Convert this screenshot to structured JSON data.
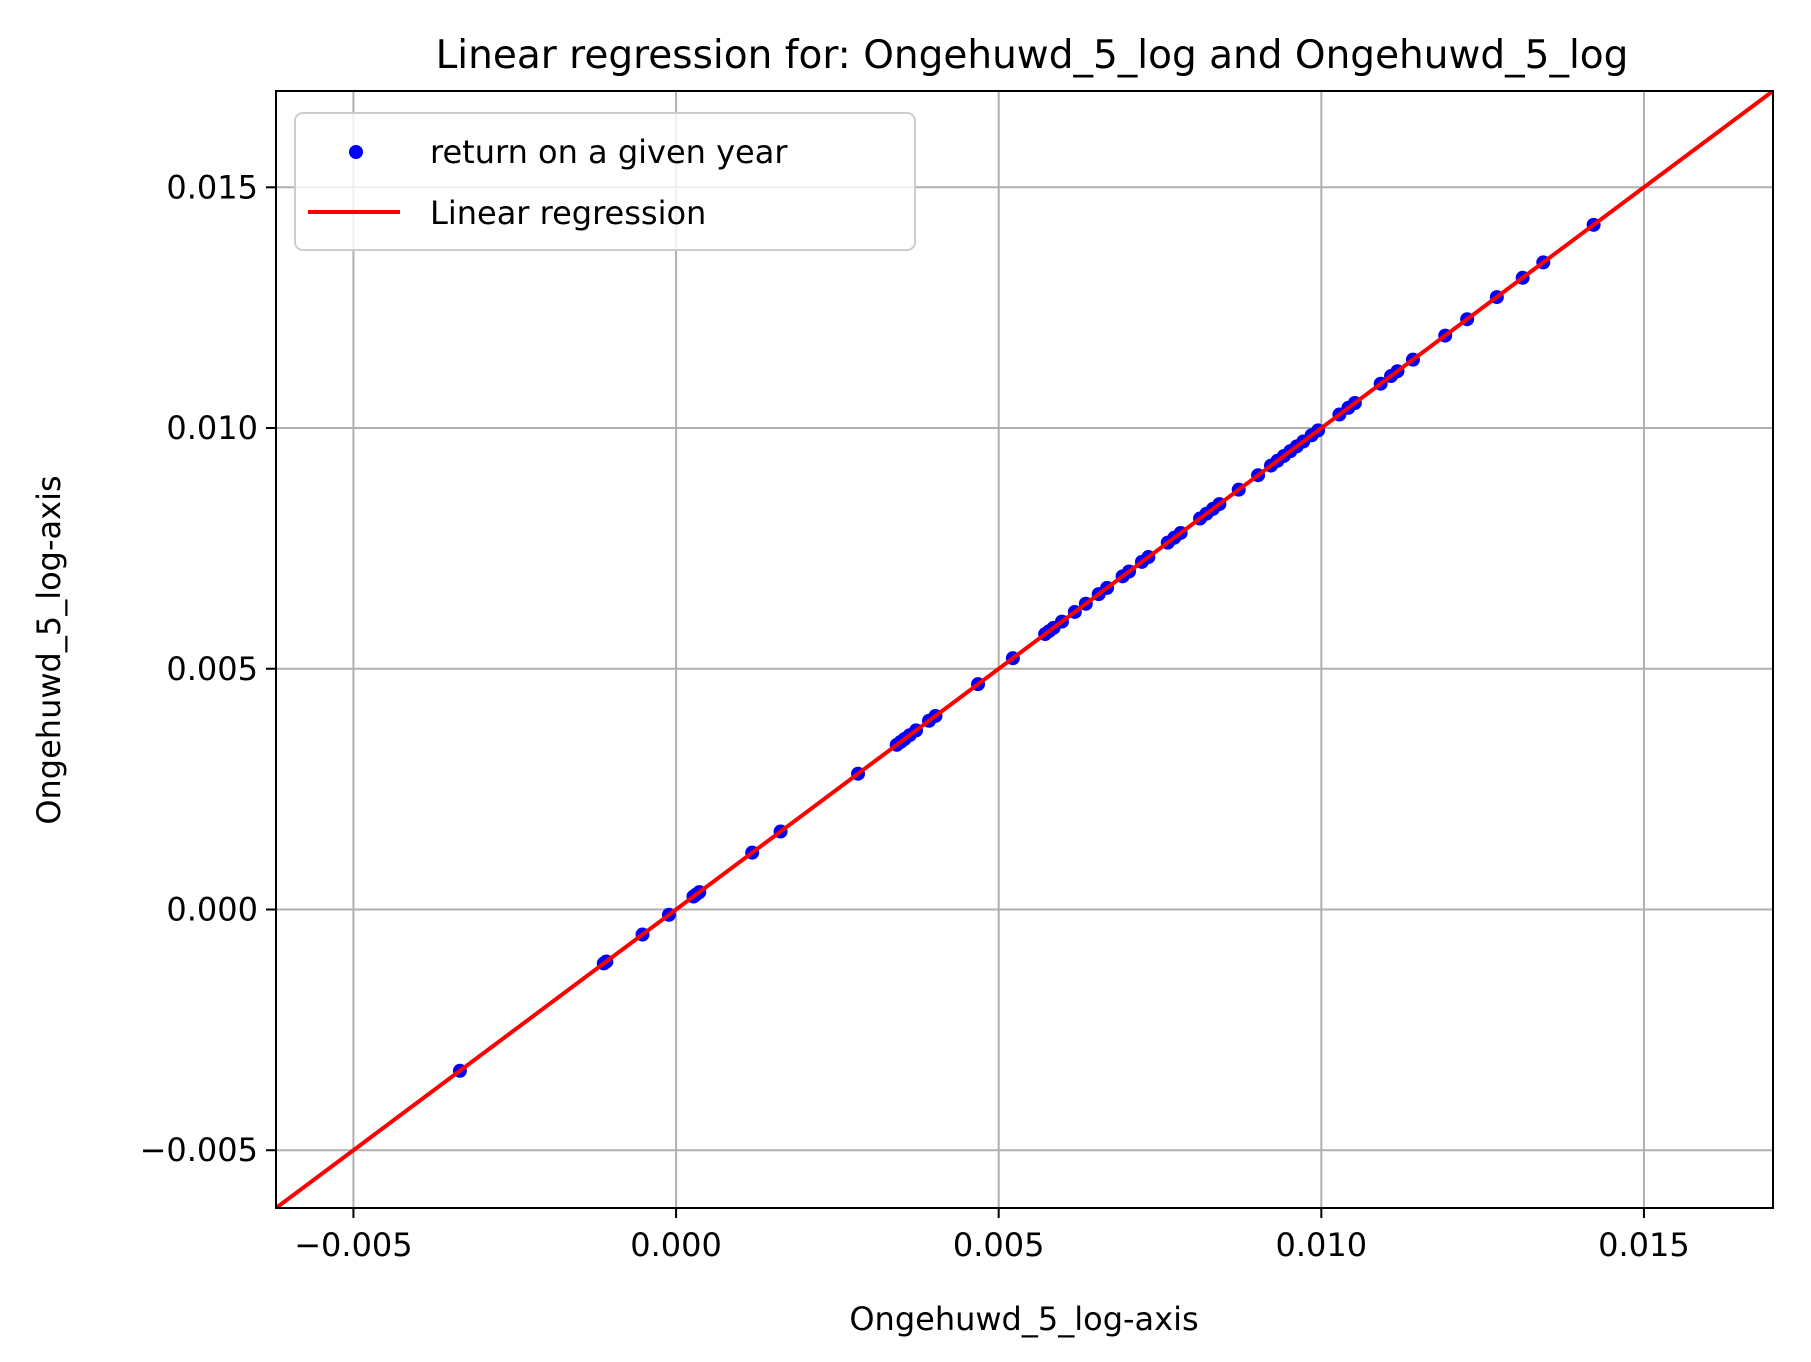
{
  "chart_data": {
    "type": "scatter",
    "title": "Linear regression for: Ongehuwd_5_log and Ongehuwd_5_log",
    "xlabel": "Ongehuwd_5_log-axis",
    "ylabel": "Ongehuwd_5_log-axis",
    "xlim": [
      -0.0062,
      0.017
    ],
    "ylim": [
      -0.0062,
      0.017
    ],
    "xticks": [
      -0.005,
      0.0,
      0.005,
      0.01,
      0.015
    ],
    "yticks": [
      -0.005,
      0.0,
      0.005,
      0.01,
      0.015
    ],
    "xtick_labels": [
      "−0.005",
      "0.000",
      "0.005",
      "0.010",
      "0.015"
    ],
    "ytick_labels": [
      "−0.005",
      "0.000",
      "0.005",
      "0.010",
      "0.015"
    ],
    "grid": true,
    "legend_position": "top-left",
    "series": [
      {
        "name": "return on a given year",
        "kind": "scatter",
        "color": "#0000ff",
        "x": [
          -0.00335,
          -0.00112,
          -0.00108,
          -0.00052,
          -0.00011,
          0.00027,
          0.00031,
          0.00036,
          0.00118,
          0.00162,
          0.00282,
          0.00342,
          0.00348,
          0.00354,
          0.00362,
          0.00372,
          0.00392,
          0.00402,
          0.00468,
          0.00522,
          0.00572,
          0.00578,
          0.00585,
          0.00598,
          0.00618,
          0.00635,
          0.00655,
          0.00668,
          0.00692,
          0.00702,
          0.00722,
          0.00732,
          0.00762,
          0.00772,
          0.00782,
          0.00812,
          0.00822,
          0.00832,
          0.00842,
          0.00872,
          0.00902,
          0.00922,
          0.00932,
          0.00942,
          0.00952,
          0.00962,
          0.00972,
          0.00985,
          0.00995,
          0.01028,
          0.01042,
          0.01052,
          0.01092,
          0.01108,
          0.01118,
          0.01142,
          0.01192,
          0.01226,
          0.01272,
          0.01312,
          0.01344,
          0.01422
        ],
        "y": [
          -0.00335,
          -0.00112,
          -0.00108,
          -0.00052,
          -0.00011,
          0.00027,
          0.00031,
          0.00036,
          0.00118,
          0.00162,
          0.00282,
          0.00342,
          0.00348,
          0.00354,
          0.00362,
          0.00372,
          0.00392,
          0.00402,
          0.00468,
          0.00522,
          0.00572,
          0.00578,
          0.00585,
          0.00598,
          0.00618,
          0.00635,
          0.00655,
          0.00668,
          0.00692,
          0.00702,
          0.00722,
          0.00732,
          0.00762,
          0.00772,
          0.00782,
          0.00812,
          0.00822,
          0.00832,
          0.00842,
          0.00872,
          0.00902,
          0.00922,
          0.00932,
          0.00942,
          0.00952,
          0.00962,
          0.00972,
          0.00985,
          0.00995,
          0.01028,
          0.01042,
          0.01052,
          0.01092,
          0.01108,
          0.01118,
          0.01142,
          0.01192,
          0.01226,
          0.01272,
          0.01312,
          0.01344,
          0.01422
        ]
      },
      {
        "name": "Linear regression",
        "kind": "line",
        "color": "#ff0000",
        "slope": 1.0,
        "intercept": 0.0,
        "x": [
          -0.0062,
          0.017
        ],
        "y": [
          -0.0062,
          0.017
        ]
      }
    ]
  }
}
